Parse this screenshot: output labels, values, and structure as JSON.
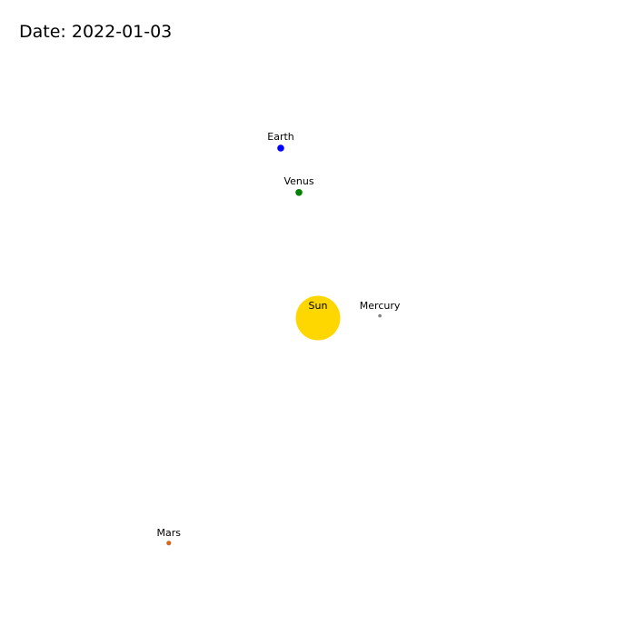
{
  "header": {
    "date_text": "Date: 2022-01-03"
  },
  "chart_data": {
    "type": "scatter",
    "title": "Date: 2022-01-03",
    "xlabel": "",
    "ylabel": "",
    "xlim": [
      -1.6,
      1.6
    ],
    "ylim": [
      -1.6,
      1.6
    ],
    "grid": false,
    "axes_visible": false,
    "series": [
      {
        "name": "Sun",
        "x": 0.0,
        "y": 0.0,
        "color": "#FFD700",
        "marker": "large-circle"
      },
      {
        "name": "Mercury",
        "x": 0.311,
        "y": 0.011,
        "color": "#808080",
        "marker": "tiny-circle"
      },
      {
        "name": "Venus",
        "x": -0.096,
        "y": 0.631,
        "color": "#008000",
        "marker": "circle"
      },
      {
        "name": "Earth",
        "x": -0.187,
        "y": 0.854,
        "color": "#0000FF",
        "marker": "circle"
      },
      {
        "name": "Mars",
        "x": -0.75,
        "y": -1.131,
        "color": "#D2691E",
        "marker": "small-circle"
      }
    ]
  }
}
